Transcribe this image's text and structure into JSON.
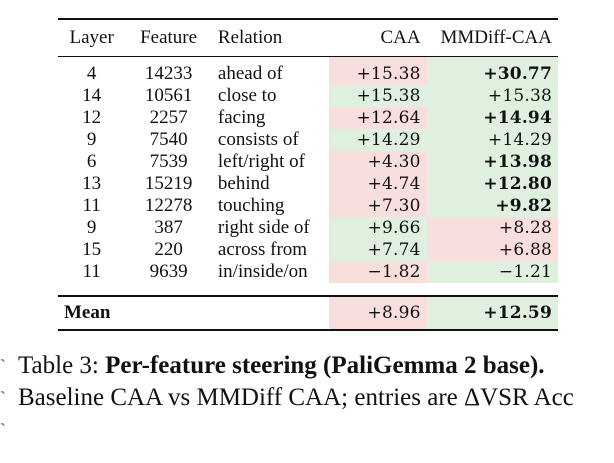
{
  "table": {
    "headers": {
      "layer": "Layer",
      "feature": "Feature",
      "relation": "Relation",
      "caa": "CAA",
      "mmdiff": "MMDiff-CAA"
    },
    "rows": [
      {
        "layer": "4",
        "feature": "14233",
        "relation": "ahead of",
        "caa": "+15.38",
        "mmdiff": "+30.77",
        "caa_bg": "pink",
        "mmdiff_bg": "green",
        "mmdiff_bold": true
      },
      {
        "layer": "14",
        "feature": "10561",
        "relation": "close to",
        "caa": "+15.38",
        "mmdiff": "+15.38",
        "caa_bg": "green",
        "mmdiff_bg": "green",
        "mmdiff_bold": false
      },
      {
        "layer": "12",
        "feature": "2257",
        "relation": "facing",
        "caa": "+12.64",
        "mmdiff": "+14.94",
        "caa_bg": "pink",
        "mmdiff_bg": "green",
        "mmdiff_bold": true
      },
      {
        "layer": "9",
        "feature": "7540",
        "relation": "consists of",
        "caa": "+14.29",
        "mmdiff": "+14.29",
        "caa_bg": "green",
        "mmdiff_bg": "green",
        "mmdiff_bold": false
      },
      {
        "layer": "6",
        "feature": "7539",
        "relation": "left/right of",
        "caa": "+4.30",
        "mmdiff": "+13.98",
        "caa_bg": "pink",
        "mmdiff_bg": "green",
        "mmdiff_bold": true
      },
      {
        "layer": "13",
        "feature": "15219",
        "relation": "behind",
        "caa": "+4.74",
        "mmdiff": "+12.80",
        "caa_bg": "pink",
        "mmdiff_bg": "green",
        "mmdiff_bold": true
      },
      {
        "layer": "11",
        "feature": "12278",
        "relation": "touching",
        "caa": "+7.30",
        "mmdiff": "+9.82",
        "caa_bg": "pink",
        "mmdiff_bg": "green",
        "mmdiff_bold": true
      },
      {
        "layer": "9",
        "feature": "387",
        "relation": "right side of",
        "caa": "+9.66",
        "mmdiff": "+8.28",
        "caa_bg": "green",
        "mmdiff_bg": "pink",
        "mmdiff_bold": false
      },
      {
        "layer": "15",
        "feature": "220",
        "relation": "across from",
        "caa": "+7.74",
        "mmdiff": "+6.88",
        "caa_bg": "green",
        "mmdiff_bg": "pink",
        "mmdiff_bold": false
      },
      {
        "layer": "11",
        "feature": "9639",
        "relation": "in/inside/on",
        "caa": "−1.82",
        "mmdiff": "−1.21",
        "caa_bg": "pink",
        "mmdiff_bg": "green",
        "mmdiff_bold": false
      }
    ],
    "mean": {
      "label": "Mean",
      "caa": "+8.96",
      "mmdiff": "+12.59",
      "caa_bg": "pink",
      "mmdiff_bg": "green",
      "mmdiff_bold": true
    }
  },
  "caption": {
    "prefix": "Table 3: ",
    "bold": "Per-feature steering (PaliGemma 2 base).",
    "rest": " Baseline CAA vs MMDiff CAA; entries are ΔVSR Acc"
  },
  "colors": {
    "pink": "#f9dede",
    "green": "#dff0df"
  }
}
